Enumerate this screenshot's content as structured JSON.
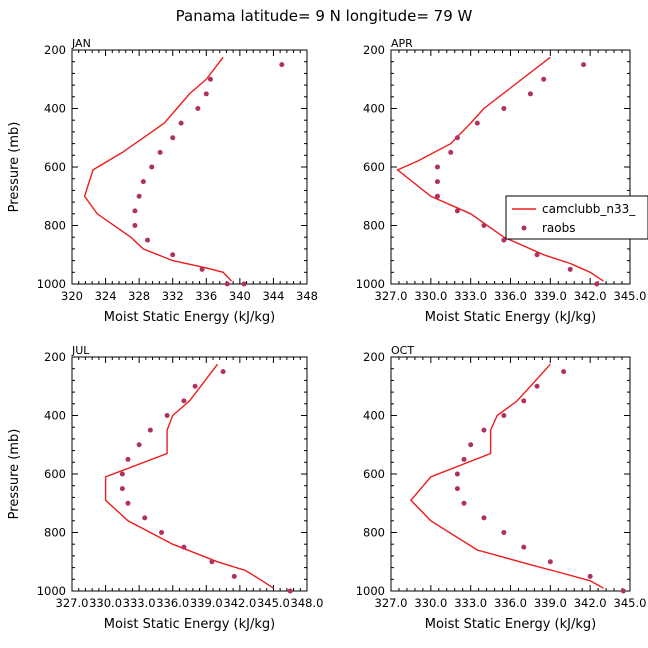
{
  "figure": {
    "title": "Panama  latitude= 9 N longitude= 79 W",
    "colors": {
      "model": "#ee1c1c",
      "obs": "#b03060",
      "axis": "#000000"
    }
  },
  "chart_data": [
    {
      "type": "line",
      "label": "JAN",
      "xlabel": "Moist Static Energy (kJ/kg)",
      "ylabel": "Pressure (mb)",
      "xlim": [
        320,
        348
      ],
      "ylim": [
        1000,
        200
      ],
      "x_ticks": [
        "320",
        "324",
        "328",
        "332",
        "336",
        "340",
        "344",
        "348"
      ],
      "y_ticks": [
        "200",
        "400",
        "600",
        "800",
        "1000"
      ],
      "series": [
        {
          "name": "camclubb_n33_",
          "style": "line",
          "x": [
            338.0,
            336.0,
            334.0,
            332.5,
            331.0,
            328.5,
            326.0,
            322.5,
            321.5,
            323.0,
            327.0,
            328.5,
            332.0,
            336.0,
            338.0,
            339.0
          ],
          "y": [
            225,
            300,
            350,
            400,
            450,
            500,
            550,
            610,
            700,
            760,
            840,
            880,
            920,
            945,
            960,
            990
          ]
        },
        {
          "name": "raobs",
          "style": "marker",
          "x": [
            345.0,
            336.5,
            336.0,
            335.0,
            333.0,
            332.0,
            330.5,
            329.5,
            328.5,
            328.0,
            327.5,
            327.5,
            329.0,
            332.0,
            335.5,
            338.5,
            340.5
          ],
          "y": [
            250,
            300,
            350,
            400,
            450,
            500,
            550,
            600,
            650,
            700,
            750,
            800,
            850,
            900,
            950,
            1000,
            1000
          ]
        }
      ]
    },
    {
      "type": "line",
      "label": "APR",
      "xlabel": "Moist Static Energy (kJ/kg)",
      "ylabel": "",
      "xlim": [
        327,
        345
      ],
      "ylim": [
        1000,
        200
      ],
      "x_ticks": [
        "327.0",
        "330.0",
        "333.0",
        "336.0",
        "339.0",
        "342.0",
        "345.0"
      ],
      "y_ticks": [
        "200",
        "400",
        "600",
        "800",
        "1000"
      ],
      "series": [
        {
          "name": "camclubb_n33_",
          "style": "line",
          "x": [
            339.0,
            336.0,
            334.0,
            333.0,
            331.5,
            329.0,
            327.5,
            330.0,
            333.0,
            335.5,
            338.5,
            340.5,
            342.0,
            343.0
          ],
          "y": [
            225,
            330,
            400,
            450,
            520,
            580,
            610,
            700,
            760,
            840,
            900,
            930,
            960,
            990
          ]
        },
        {
          "name": "raobs",
          "style": "marker",
          "x": [
            341.5,
            338.5,
            337.5,
            335.5,
            333.5,
            332.0,
            331.5,
            330.5,
            330.5,
            330.5,
            332.0,
            334.0,
            335.5,
            338.0,
            340.5,
            342.5
          ],
          "y": [
            250,
            300,
            350,
            400,
            450,
            500,
            550,
            600,
            650,
            700,
            750,
            800,
            850,
            900,
            950,
            1000
          ]
        }
      ],
      "legend": {
        "location": "right",
        "entries": [
          "camclubb_n33_",
          "raobs"
        ]
      }
    },
    {
      "type": "line",
      "label": "JUL",
      "xlabel": "Moist Static Energy (kJ/kg)",
      "ylabel": "Pressure (mb)",
      "xlim": [
        327,
        348
      ],
      "ylim": [
        1000,
        200
      ],
      "x_ticks": [
        "327.0",
        "330.0",
        "333.0",
        "336.0",
        "339.0",
        "342.0",
        "345.0",
        "348.0"
      ],
      "y_ticks": [
        "200",
        "400",
        "600",
        "800",
        "1000"
      ],
      "series": [
        {
          "name": "camclubb_n33_",
          "style": "line",
          "x": [
            340.0,
            338.5,
            337.5,
            336.0,
            335.5,
            335.5,
            330.0,
            330.0,
            332.0,
            336.0,
            340.0,
            342.5,
            344.0,
            345.0
          ],
          "y": [
            225,
            300,
            350,
            400,
            450,
            530,
            610,
            690,
            760,
            840,
            900,
            930,
            965,
            990
          ]
        },
        {
          "name": "raobs",
          "style": "marker",
          "x": [
            340.5,
            338.0,
            337.0,
            335.5,
            334.0,
            333.0,
            332.0,
            331.5,
            331.5,
            332.0,
            333.5,
            335.0,
            337.0,
            339.5,
            341.5,
            346.5
          ],
          "y": [
            250,
            300,
            350,
            400,
            450,
            500,
            550,
            600,
            650,
            700,
            750,
            800,
            850,
            900,
            950,
            1000
          ]
        }
      ]
    },
    {
      "type": "line",
      "label": "OCT",
      "xlabel": "Moist Static Energy (kJ/kg)",
      "ylabel": "",
      "xlim": [
        327,
        345
      ],
      "ylim": [
        1000,
        200
      ],
      "x_ticks": [
        "327.0",
        "330.0",
        "333.0",
        "336.0",
        "339.0",
        "342.0",
        "345.0"
      ],
      "y_ticks": [
        "200",
        "400",
        "600",
        "800",
        "1000"
      ],
      "series": [
        {
          "name": "camclubb_n33_",
          "style": "line",
          "x": [
            339.0,
            337.5,
            336.5,
            335.0,
            334.5,
            334.5,
            330.0,
            328.5,
            330.0,
            333.5,
            337.5,
            340.0,
            342.0,
            343.0
          ],
          "y": [
            225,
            300,
            350,
            400,
            450,
            530,
            610,
            690,
            760,
            860,
            910,
            940,
            965,
            990
          ]
        },
        {
          "name": "raobs",
          "style": "marker",
          "x": [
            340.0,
            338.0,
            337.0,
            335.5,
            334.0,
            333.0,
            332.5,
            332.0,
            332.0,
            332.5,
            334.0,
            335.5,
            337.0,
            339.0,
            342.0,
            344.5
          ],
          "y": [
            250,
            300,
            350,
            400,
            450,
            500,
            550,
            600,
            650,
            700,
            750,
            800,
            850,
            900,
            950,
            1000
          ]
        }
      ]
    }
  ]
}
